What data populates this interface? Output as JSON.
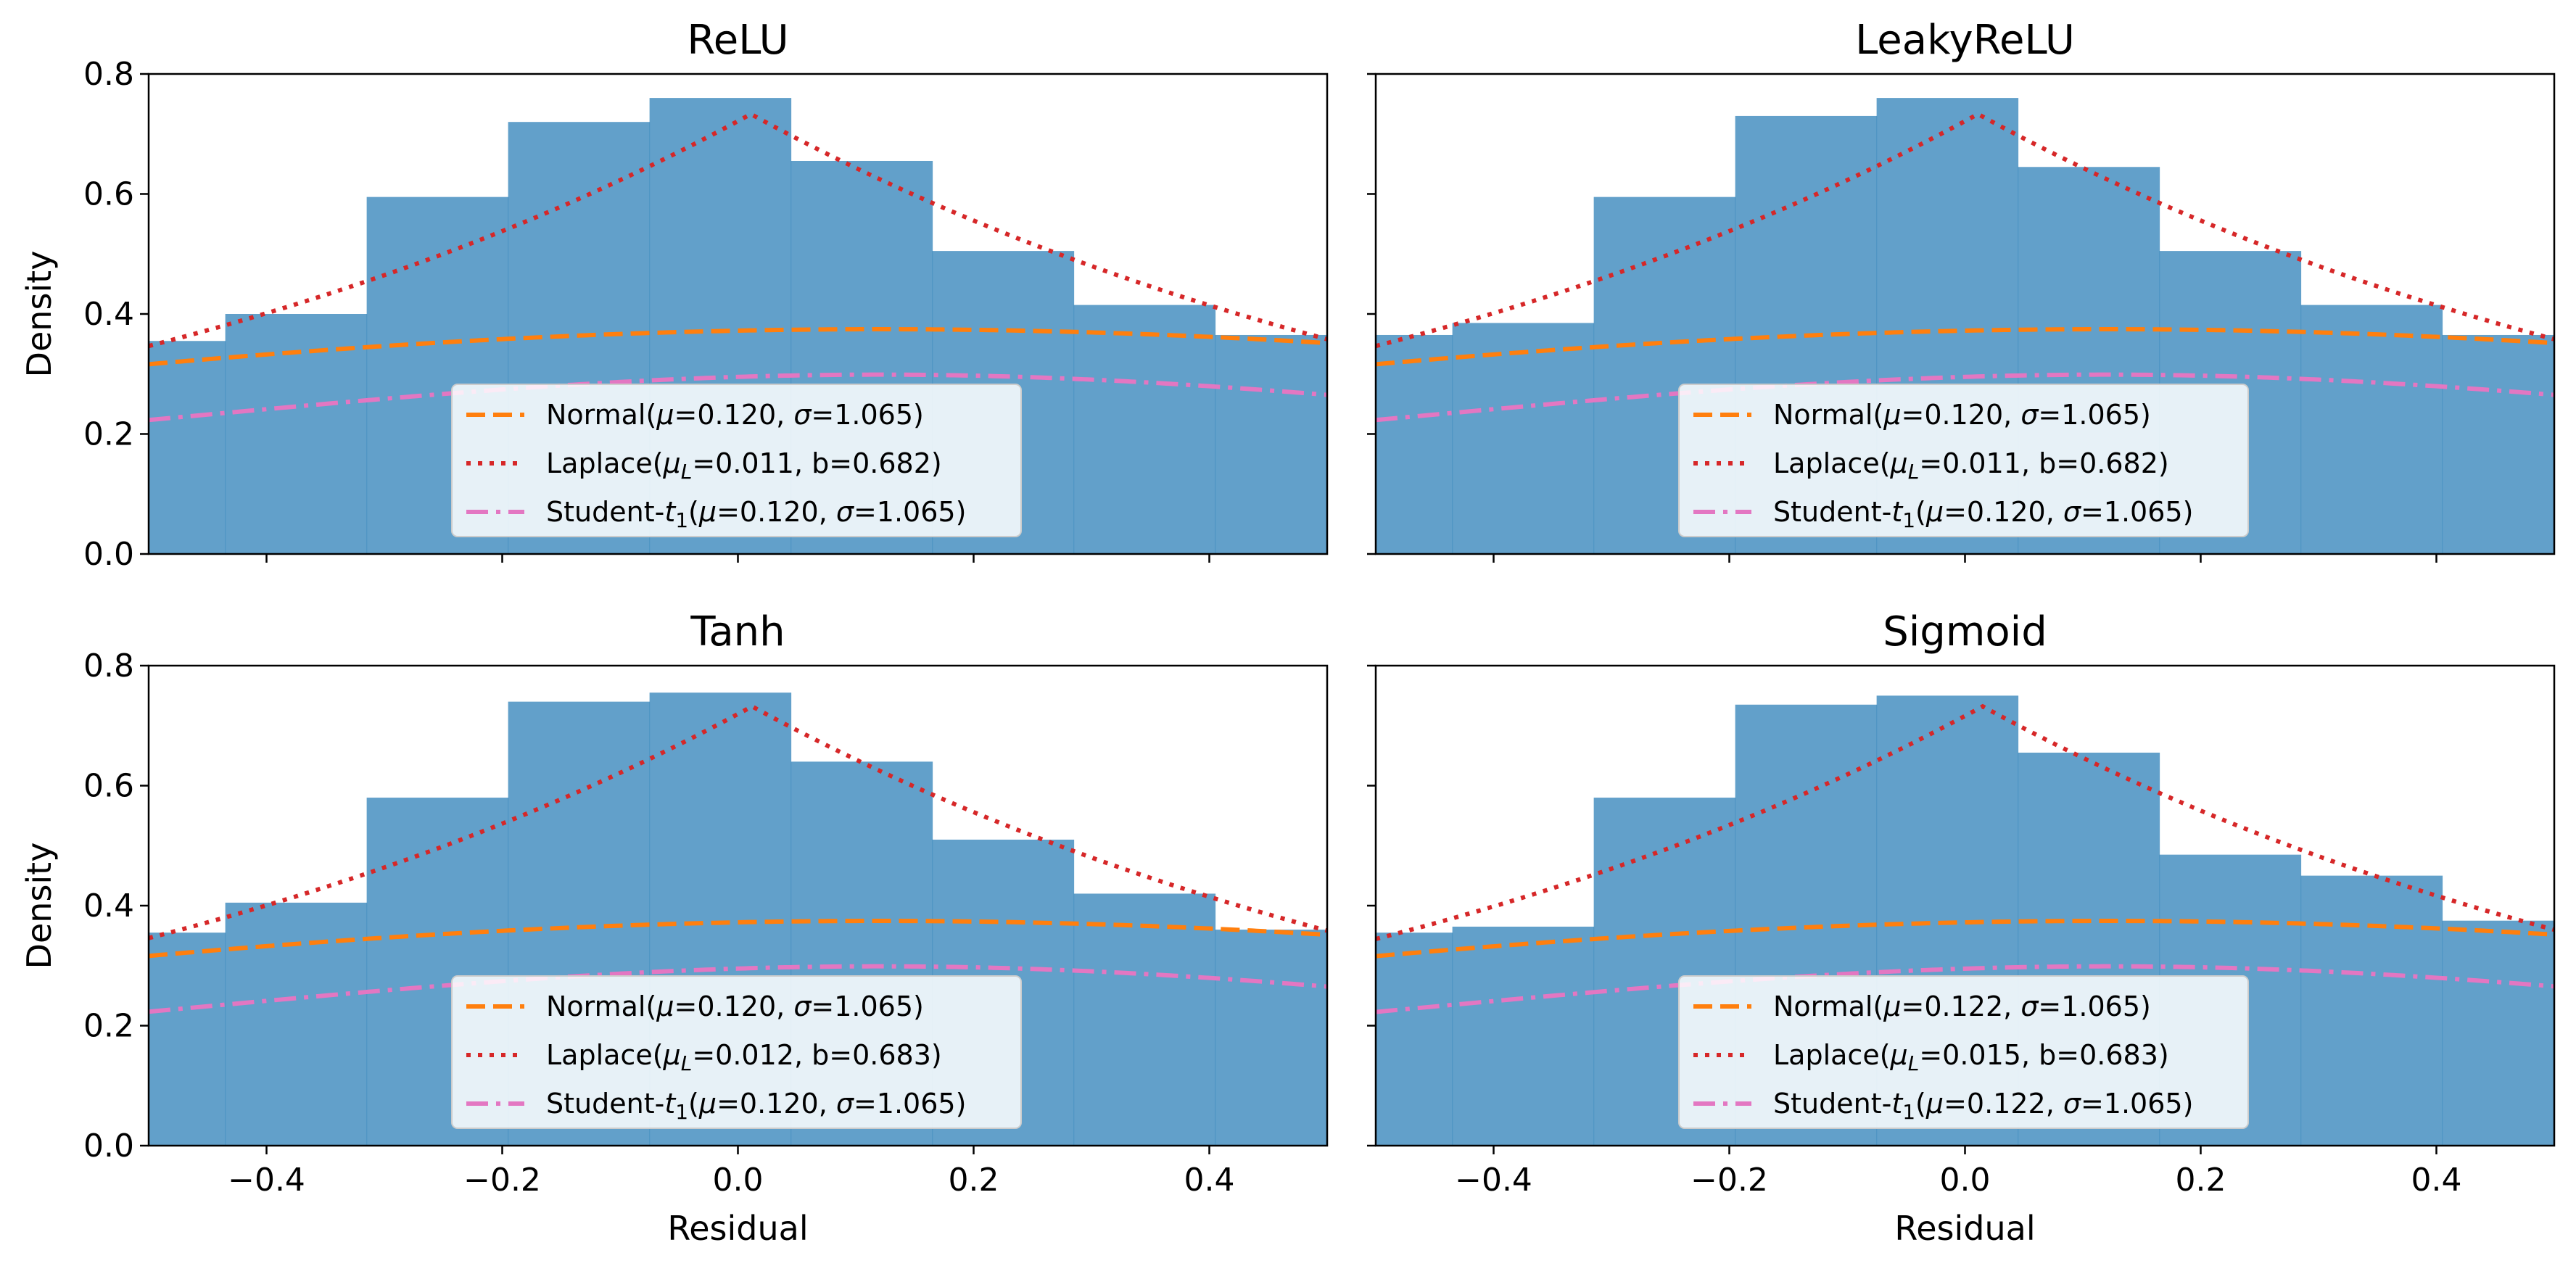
{
  "colors": {
    "hist": "#1f77b4",
    "normal": "#ff7f0e",
    "laplace": "#d62728",
    "student": "#e377c2",
    "axis": "#000000"
  },
  "chart_data": [
    {
      "type": "bar",
      "title": "ReLU",
      "xlabel": "",
      "ylabel": "Density",
      "xlim": [
        -0.5,
        0.5
      ],
      "ylim": [
        0.0,
        0.8
      ],
      "xticks": [
        "−0.4",
        "−0.2",
        "0.0",
        "0.2",
        "0.4"
      ],
      "yticks": [
        "0.0",
        "0.2",
        "0.4",
        "0.6",
        "0.8"
      ],
      "histogram": {
        "bin_edges": [
          -0.5,
          -0.435,
          -0.315,
          -0.195,
          -0.075,
          0.045,
          0.165,
          0.285,
          0.405,
          0.5
        ],
        "density": [
          0.355,
          0.4,
          0.595,
          0.72,
          0.76,
          0.655,
          0.505,
          0.415,
          0.365
        ]
      },
      "series": [
        {
          "name": "Normal",
          "dist": "normal",
          "mu": 0.12,
          "sigma": 1.065
        },
        {
          "name": "Laplace",
          "dist": "laplace",
          "mu": 0.011,
          "b": 0.682
        },
        {
          "name": "Student-t1",
          "dist": "student-t1",
          "mu": 0.12,
          "sigma": 1.065
        }
      ],
      "legend": {
        "position": "lower center",
        "normal": {
          "prefix": "Normal(",
          "mu_sym": "μ",
          "mu_sub": "",
          "mu_val": "=0.120, ",
          "p2_sym": "σ",
          "p2_val": "=1.065)"
        },
        "laplace": {
          "prefix": "Laplace(",
          "mu_sym": "μ",
          "mu_sub": "L",
          "mu_val": "=0.011, ",
          "p2_sym": "b",
          "p2_val": "=0.682)"
        },
        "student": {
          "prefix": "Student-",
          "t_sym": "t",
          "t_sub": "1",
          "paren": "(",
          "mu_sym": "μ",
          "mu_val": "=0.120, ",
          "p2_sym": "σ",
          "p2_val": "=1.065)"
        }
      }
    },
    {
      "type": "bar",
      "title": "LeakyReLU",
      "xlabel": "",
      "ylabel": "",
      "xlim": [
        -0.5,
        0.5
      ],
      "ylim": [
        0.0,
        0.8
      ],
      "xticks": [
        "−0.4",
        "−0.2",
        "0.0",
        "0.2",
        "0.4"
      ],
      "yticks": [
        "0.0",
        "0.2",
        "0.4",
        "0.6",
        "0.8"
      ],
      "histogram": {
        "bin_edges": [
          -0.5,
          -0.435,
          -0.315,
          -0.195,
          -0.075,
          0.045,
          0.165,
          0.285,
          0.405,
          0.5
        ],
        "density": [
          0.365,
          0.385,
          0.595,
          0.73,
          0.76,
          0.645,
          0.505,
          0.415,
          0.365
        ]
      },
      "series": [
        {
          "name": "Normal",
          "dist": "normal",
          "mu": 0.12,
          "sigma": 1.065
        },
        {
          "name": "Laplace",
          "dist": "laplace",
          "mu": 0.011,
          "b": 0.682
        },
        {
          "name": "Student-t1",
          "dist": "student-t1",
          "mu": 0.12,
          "sigma": 1.065
        }
      ],
      "legend": {
        "position": "lower center",
        "normal": {
          "prefix": "Normal(",
          "mu_sym": "μ",
          "mu_sub": "",
          "mu_val": "=0.120, ",
          "p2_sym": "σ",
          "p2_val": "=1.065)"
        },
        "laplace": {
          "prefix": "Laplace(",
          "mu_sym": "μ",
          "mu_sub": "L",
          "mu_val": "=0.011, ",
          "p2_sym": "b",
          "p2_val": "=0.682)"
        },
        "student": {
          "prefix": "Student-",
          "t_sym": "t",
          "t_sub": "1",
          "paren": "(",
          "mu_sym": "μ",
          "mu_val": "=0.120, ",
          "p2_sym": "σ",
          "p2_val": "=1.065)"
        }
      }
    },
    {
      "type": "bar",
      "title": "Tanh",
      "xlabel": "Residual",
      "ylabel": "Density",
      "xlim": [
        -0.5,
        0.5
      ],
      "ylim": [
        0.0,
        0.8
      ],
      "xticks": [
        "−0.4",
        "−0.2",
        "0.0",
        "0.2",
        "0.4"
      ],
      "yticks": [
        "0.0",
        "0.2",
        "0.4",
        "0.6",
        "0.8"
      ],
      "histogram": {
        "bin_edges": [
          -0.5,
          -0.435,
          -0.315,
          -0.195,
          -0.075,
          0.045,
          0.165,
          0.285,
          0.405,
          0.5
        ],
        "density": [
          0.355,
          0.405,
          0.58,
          0.74,
          0.755,
          0.64,
          0.51,
          0.42,
          0.36
        ]
      },
      "series": [
        {
          "name": "Normal",
          "dist": "normal",
          "mu": 0.12,
          "sigma": 1.065
        },
        {
          "name": "Laplace",
          "dist": "laplace",
          "mu": 0.012,
          "b": 0.683
        },
        {
          "name": "Student-t1",
          "dist": "student-t1",
          "mu": 0.12,
          "sigma": 1.065
        }
      ],
      "legend": {
        "position": "lower center",
        "normal": {
          "prefix": "Normal(",
          "mu_sym": "μ",
          "mu_sub": "",
          "mu_val": "=0.120, ",
          "p2_sym": "σ",
          "p2_val": "=1.065)"
        },
        "laplace": {
          "prefix": "Laplace(",
          "mu_sym": "μ",
          "mu_sub": "L",
          "mu_val": "=0.012, ",
          "p2_sym": "b",
          "p2_val": "=0.683)"
        },
        "student": {
          "prefix": "Student-",
          "t_sym": "t",
          "t_sub": "1",
          "paren": "(",
          "mu_sym": "μ",
          "mu_val": "=0.120, ",
          "p2_sym": "σ",
          "p2_val": "=1.065)"
        }
      }
    },
    {
      "type": "bar",
      "title": "Sigmoid",
      "xlabel": "Residual",
      "ylabel": "",
      "xlim": [
        -0.5,
        0.5
      ],
      "ylim": [
        0.0,
        0.8
      ],
      "xticks": [
        "−0.4",
        "−0.2",
        "0.0",
        "0.2",
        "0.4"
      ],
      "yticks": [
        "0.0",
        "0.2",
        "0.4",
        "0.6",
        "0.8"
      ],
      "histogram": {
        "bin_edges": [
          -0.5,
          -0.435,
          -0.315,
          -0.195,
          -0.075,
          0.045,
          0.165,
          0.285,
          0.405,
          0.5
        ],
        "density": [
          0.355,
          0.365,
          0.58,
          0.735,
          0.75,
          0.655,
          0.485,
          0.45,
          0.375
        ]
      },
      "series": [
        {
          "name": "Normal",
          "dist": "normal",
          "mu": 0.122,
          "sigma": 1.065
        },
        {
          "name": "Laplace",
          "dist": "laplace",
          "mu": 0.015,
          "b": 0.683
        },
        {
          "name": "Student-t1",
          "dist": "student-t1",
          "mu": 0.122,
          "sigma": 1.065
        }
      ],
      "legend": {
        "position": "lower center",
        "normal": {
          "prefix": "Normal(",
          "mu_sym": "μ",
          "mu_sub": "",
          "mu_val": "=0.122, ",
          "p2_sym": "σ",
          "p2_val": "=1.065)"
        },
        "laplace": {
          "prefix": "Laplace(",
          "mu_sym": "μ",
          "mu_sub": "L",
          "mu_val": "=0.015, ",
          "p2_sym": "b",
          "p2_val": "=0.683)"
        },
        "student": {
          "prefix": "Student-",
          "t_sym": "t",
          "t_sub": "1",
          "paren": "(",
          "mu_sym": "μ",
          "mu_val": "=0.122, ",
          "p2_sym": "σ",
          "p2_val": "=1.065)"
        }
      }
    }
  ]
}
